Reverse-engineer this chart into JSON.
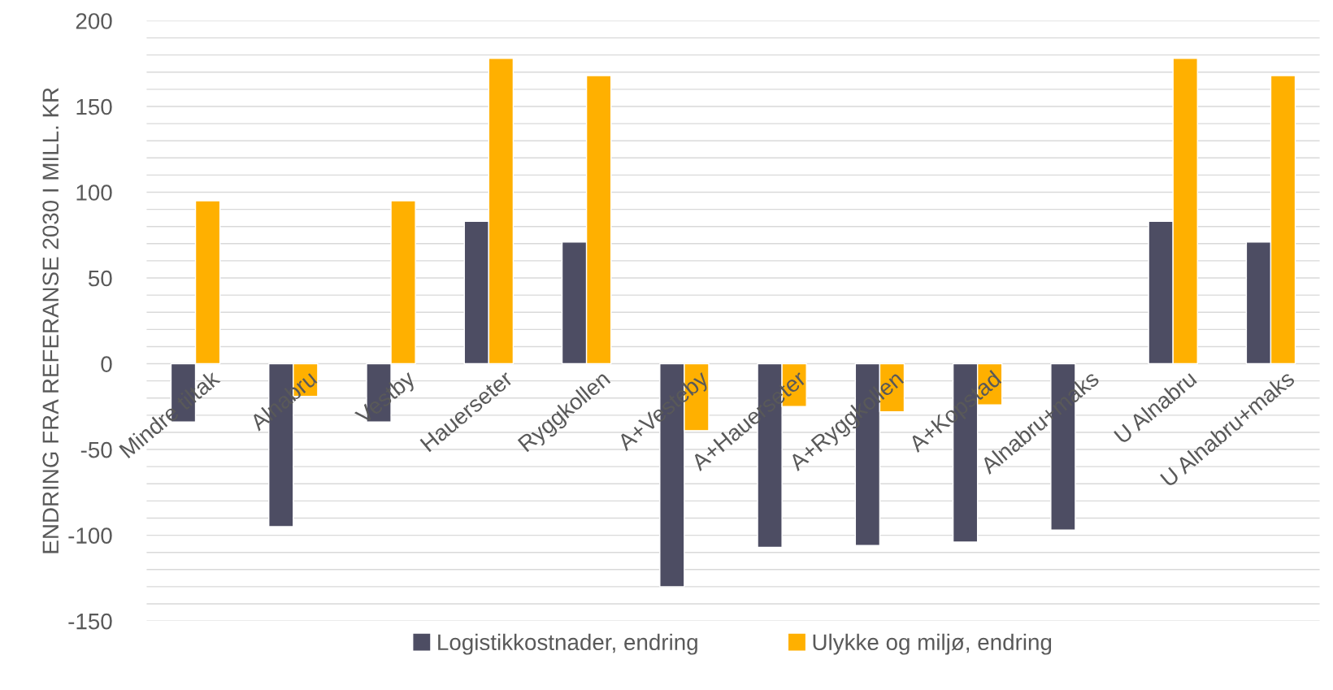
{
  "chart_data": {
    "type": "bar",
    "ylabel": "ENDRING FRA REFERANSE 2030 I MILL. KR",
    "categories": [
      "Mindre tiltak",
      "Alnabru",
      "Vestby",
      "Hauerseter",
      "Ryggkollen",
      "A+Vesteby",
      "A+Hauerseter",
      "A+Ryggkollen",
      "A+Kopstad",
      "Alnabru+maks",
      "U Alnabru",
      "U Alnabru+maks"
    ],
    "series": [
      {
        "name": "Logistikkostnader, endring",
        "color": "#4d4d63",
        "values": [
          -34,
          -95,
          -34,
          83,
          71,
          -130,
          -107,
          -106,
          -104,
          -97,
          83,
          71
        ]
      },
      {
        "name": "Ulykke og miljø, endring",
        "color": "#ffb000",
        "values": [
          95,
          -19,
          95,
          178,
          168,
          -39,
          -25,
          -28,
          -24,
          null,
          178,
          168
        ]
      }
    ],
    "ylim": [
      -150,
      200
    ],
    "yticks": [
      -150,
      {
        "value": -140,
        "label": null
      },
      {
        "value": -130,
        "label": null
      },
      {
        "value": -120,
        "label": null
      },
      {
        "value": -110,
        "label": null
      },
      -100,
      {
        "value": -90,
        "label": null
      },
      {
        "value": -80,
        "label": null
      },
      {
        "value": -70,
        "label": null
      },
      {
        "value": -60,
        "label": null
      },
      -50,
      {
        "value": -40,
        "label": null
      },
      {
        "value": -30,
        "label": null
      },
      {
        "value": -20,
        "label": null
      },
      {
        "value": -10,
        "label": null
      },
      0,
      {
        "value": 10,
        "label": null
      },
      {
        "value": 20,
        "label": null
      },
      {
        "value": 30,
        "label": null
      },
      {
        "value": 40,
        "label": null
      },
      50,
      {
        "value": 60,
        "label": null
      },
      {
        "value": 70,
        "label": null
      },
      {
        "value": 80,
        "label": null
      },
      {
        "value": 90,
        "label": null
      },
      100,
      {
        "value": 110,
        "label": null
      },
      {
        "value": 120,
        "label": null
      },
      {
        "value": 130,
        "label": null
      },
      {
        "value": 140,
        "label": null
      },
      150,
      {
        "value": 160,
        "label": null
      },
      {
        "value": 170,
        "label": null
      },
      {
        "value": 180,
        "label": null
      },
      {
        "value": 190,
        "label": null
      },
      200
    ],
    "grid": "y",
    "legend": "bottom"
  }
}
